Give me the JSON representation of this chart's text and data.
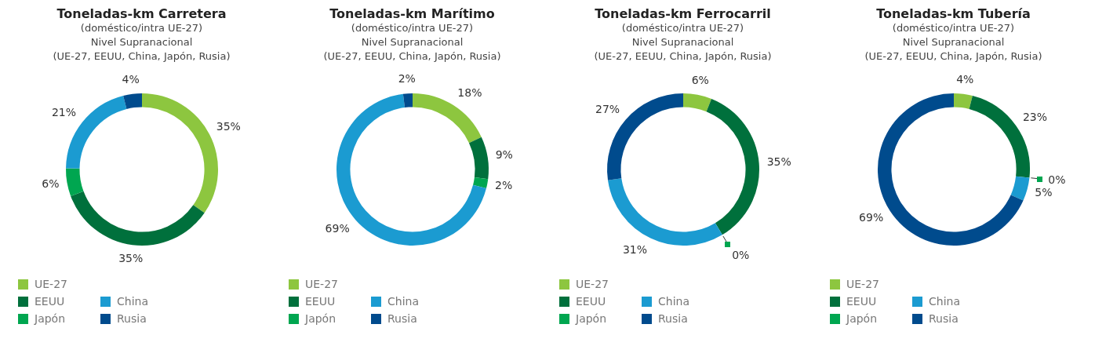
{
  "chart_data": [
    {
      "type": "donut",
      "title": "Toneladas-km Carretera",
      "subtitle": "(doméstico/intra UE-27)\nNivel Supranacional\n(UE-27, EEUU, China, Japón, Rusia)",
      "categories": [
        "UE-27",
        "EEUU",
        "Japón",
        "China",
        "Rusia"
      ],
      "values": [
        35,
        35,
        6,
        21,
        4
      ],
      "value_labels": [
        "35%",
        "35%",
        "6%",
        "21%",
        "4%"
      ],
      "colors": [
        "#8dc63f",
        "#00703c",
        "#00a650",
        "#1b9bd1",
        "#004b8d"
      ],
      "legend": "bottom left"
    },
    {
      "type": "donut",
      "title": "Toneladas-km Marítimo",
      "subtitle": "(doméstico/intra UE-27)\nNivel Supranacional\n(UE-27, EEUU, China, Japón, Rusia)",
      "categories": [
        "UE-27",
        "EEUU",
        "Japón",
        "China",
        "Rusia"
      ],
      "values": [
        18,
        9,
        2,
        69,
        2
      ],
      "value_labels": [
        "18%",
        "9%",
        "2%",
        "69%",
        "2%"
      ],
      "colors": [
        "#8dc63f",
        "#00703c",
        "#00a650",
        "#1b9bd1",
        "#004b8d"
      ],
      "legend": "bottom left"
    },
    {
      "type": "donut",
      "title": "Toneladas-km Ferrocarril",
      "subtitle": "(doméstico/intra UE-27)\nNivel Supranacional\n(UE-27, EEUU, China, Japón, Rusia)",
      "categories": [
        "UE-27",
        "EEUU",
        "Japón",
        "China",
        "Rusia"
      ],
      "values": [
        6,
        35,
        0,
        31,
        27
      ],
      "value_labels": [
        "6%",
        "35%",
        "0%",
        "31%",
        "27%"
      ],
      "colors": [
        "#8dc63f",
        "#00703c",
        "#00a650",
        "#1b9bd1",
        "#004b8d"
      ],
      "legend": "bottom left"
    },
    {
      "type": "donut",
      "title": "Toneladas-km Tubería",
      "subtitle": "(doméstico/intra UE-27)\nNivel Supranacional\n(UE-27, EEUU, China, Japón, Rusia)",
      "categories": [
        "UE-27",
        "EEUU",
        "Japón",
        "China",
        "Rusia"
      ],
      "values": [
        4,
        23,
        0,
        5,
        69
      ],
      "value_labels": [
        "4%",
        "23%",
        "0%",
        "5%",
        "69%"
      ],
      "colors": [
        "#8dc63f",
        "#00703c",
        "#00a650",
        "#1b9bd1",
        "#004b8d"
      ],
      "legend": "bottom left"
    }
  ]
}
